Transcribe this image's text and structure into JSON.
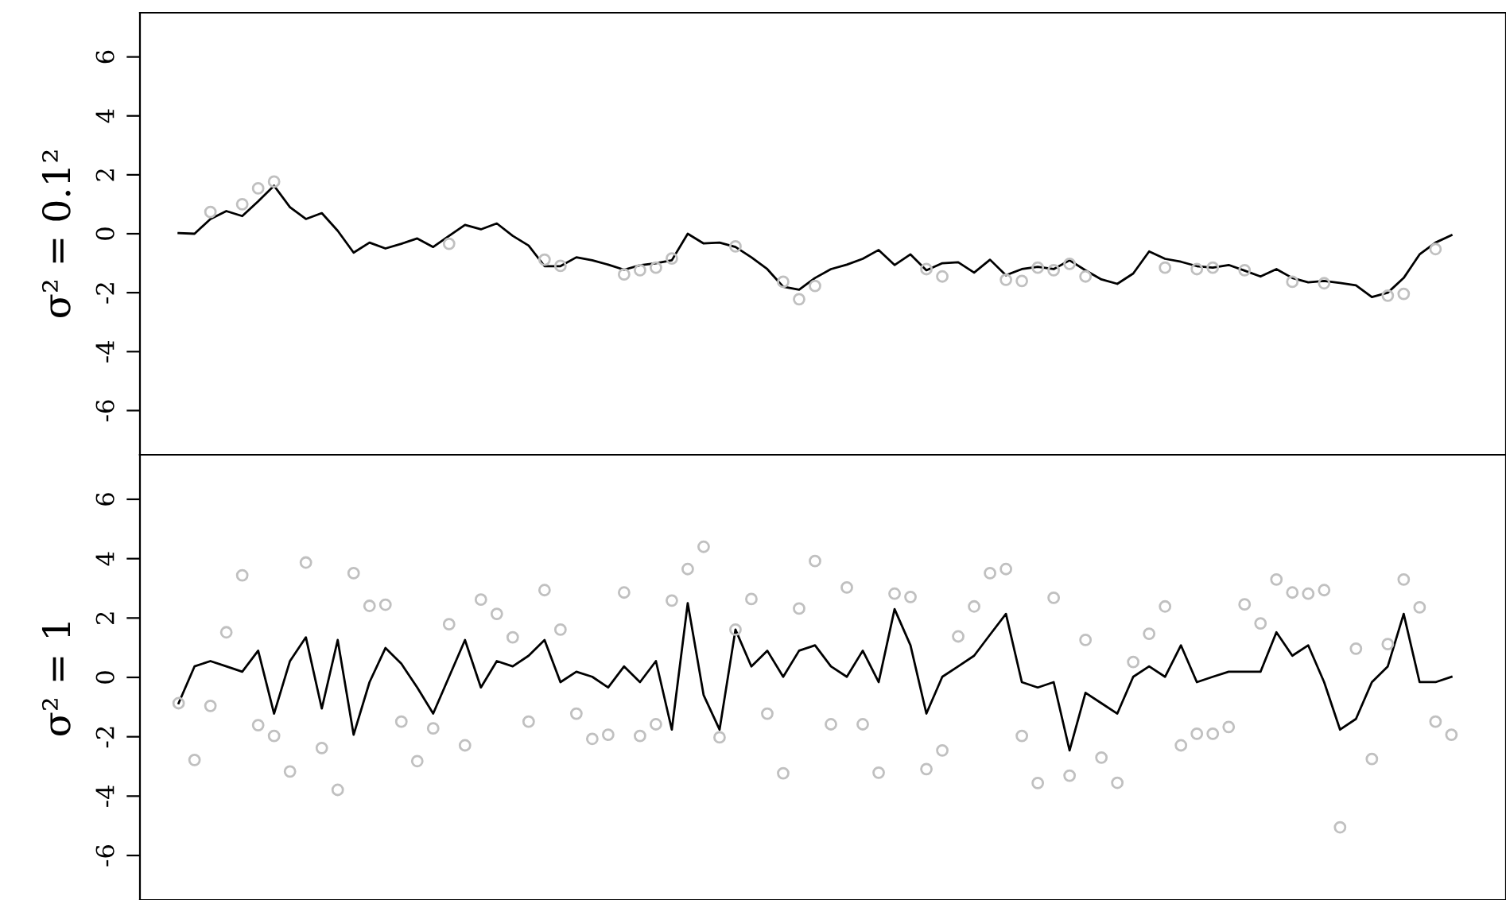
{
  "chart_data": [
    {
      "type": "line",
      "ylabel": "σ² = 0.1²",
      "categories": [
        null,
        null,
        null,
        null,
        null,
        null,
        null,
        null,
        null,
        null,
        null,
        null,
        null,
        null,
        null,
        null,
        null,
        null,
        null,
        null,
        null,
        null,
        null,
        null,
        null,
        null,
        null,
        null,
        null,
        null,
        null,
        null,
        null,
        null,
        null,
        null,
        null,
        null,
        null,
        null,
        null,
        null,
        null,
        null,
        null,
        null,
        null,
        null,
        null,
        null,
        null,
        null,
        null,
        null,
        null,
        null,
        null,
        null,
        null,
        null,
        null,
        null,
        null,
        null,
        null,
        null,
        null,
        null,
        null,
        null,
        null,
        null,
        null,
        null,
        null,
        null,
        null,
        null,
        null,
        null,
        null
      ],
      "ylim": [
        -7.5,
        7.5
      ],
      "yticks": [
        -6,
        -4,
        -2,
        0,
        2,
        4,
        6
      ],
      "tick_labels": "y",
      "grid": false,
      "series": [
        {
          "type": "scatter",
          "color": "#c0c0c0",
          "marker": "circle",
          "values": [
            null,
            null,
            0.74,
            null,
            1.0,
            1.54,
            1.77,
            null,
            null,
            null,
            null,
            null,
            null,
            null,
            null,
            null,
            null,
            -0.34,
            null,
            null,
            null,
            null,
            null,
            -0.88,
            -1.09,
            null,
            null,
            null,
            -1.38,
            -1.24,
            -1.15,
            -0.84,
            null,
            null,
            null,
            -0.43,
            null,
            null,
            -1.63,
            -2.22,
            -1.77,
            null,
            null,
            null,
            null,
            null,
            null,
            -1.2,
            -1.45,
            null,
            null,
            null,
            -1.56,
            -1.6,
            -1.15,
            -1.24,
            -1.02,
            -1.45,
            null,
            null,
            null,
            null,
            -1.15,
            null,
            -1.2,
            -1.15,
            null,
            -1.24,
            null,
            null,
            -1.63,
            null,
            -1.68,
            null,
            null,
            null,
            -2.1,
            -2.04,
            null,
            -0.52,
            null
          ]
        },
        {
          "color": "#000000",
          "line_style": "solid",
          "values": [
            0.02,
            0.0,
            0.5,
            0.77,
            0.6,
            1.1,
            1.63,
            0.9,
            0.5,
            0.7,
            0.1,
            -0.64,
            -0.3,
            -0.5,
            -0.34,
            -0.16,
            -0.45,
            -0.07,
            0.3,
            0.15,
            0.35,
            -0.07,
            -0.4,
            -1.1,
            -1.1,
            -0.8,
            -0.9,
            -1.05,
            -1.22,
            -1.07,
            -1.0,
            -0.9,
            0.0,
            -0.33,
            -0.3,
            -0.45,
            -0.8,
            -1.2,
            -1.8,
            -1.9,
            -1.5,
            -1.2,
            -1.05,
            -0.85,
            -0.55,
            -1.06,
            -0.7,
            -1.24,
            -1.0,
            -0.97,
            -1.32,
            -0.88,
            -1.41,
            -1.2,
            -1.12,
            -1.2,
            -0.9,
            -1.24,
            -1.55,
            -1.7,
            -1.35,
            -0.6,
            -0.85,
            -0.95,
            -1.1,
            -1.15,
            -1.06,
            -1.25,
            -1.45,
            -1.2,
            -1.5,
            -1.65,
            -1.6,
            -1.67,
            -1.75,
            -2.15,
            -2.0,
            -1.5,
            -0.7,
            -0.3,
            -0.05
          ]
        }
      ]
    },
    {
      "type": "line",
      "ylabel": "σ² = 1",
      "categories": [
        null,
        null,
        null,
        null,
        null,
        null,
        null,
        null,
        null,
        null,
        null,
        null,
        null,
        null,
        null,
        null,
        null,
        null,
        null,
        null,
        null,
        null,
        null,
        null,
        null,
        null,
        null,
        null,
        null,
        null,
        null,
        null,
        null,
        null,
        null,
        null,
        null,
        null,
        null,
        null,
        null,
        null,
        null,
        null,
        null,
        null,
        null,
        null,
        null,
        null,
        null,
        null,
        null,
        null,
        null,
        null,
        null,
        null,
        null,
        null,
        null,
        null,
        null,
        null,
        null,
        null,
        null,
        null,
        null,
        null,
        null,
        null,
        null,
        null,
        null,
        null,
        null,
        null,
        null,
        null,
        null
      ],
      "ylim": [
        -7.5,
        7.5
      ],
      "yticks": [
        -6,
        -4,
        -2,
        0,
        2,
        4,
        6
      ],
      "tick_labels": "y",
      "grid": false,
      "series": [
        {
          "type": "scatter",
          "color": "#c0c0c0",
          "marker": "circle",
          "values": [
            -0.87,
            -2.78,
            -0.96,
            1.52,
            3.44,
            -1.61,
            -1.97,
            -3.17,
            3.87,
            -2.38,
            -3.79,
            3.51,
            2.41,
            2.45,
            -1.49,
            -2.82,
            -1.72,
            1.79,
            -2.29,
            2.62,
            2.14,
            1.35,
            -1.49,
            2.94,
            1.61,
            -1.22,
            -2.07,
            -1.93,
            2.86,
            -1.97,
            -1.58,
            2.59,
            3.65,
            4.4,
            -2.02,
            1.61,
            2.64,
            -1.22,
            -3.23,
            2.32,
            3.92,
            -1.58,
            3.03,
            -1.58,
            -3.21,
            2.82,
            2.71,
            -3.09,
            -2.46,
            1.38,
            2.39,
            3.51,
            3.65,
            -1.97,
            -3.56,
            2.68,
            -3.31,
            1.26,
            -2.7,
            -3.55,
            0.52,
            1.47,
            2.39,
            -2.29,
            -1.9,
            -1.9,
            -1.67,
            2.46,
            1.82,
            3.3,
            2.86,
            2.82,
            2.94,
            -5.05,
            0.97,
            -2.75,
            1.12,
            3.3,
            2.36,
            -1.49,
            -1.93
          ]
        },
        {
          "color": "#000000",
          "line_style": "solid",
          "values": [
            -0.87,
            0.37,
            0.55,
            0.37,
            0.19,
            0.9,
            -1.22,
            0.55,
            1.35,
            -1.05,
            1.26,
            -1.93,
            -0.16,
            0.99,
            0.46,
            -0.34,
            -1.22,
            0.02,
            1.26,
            -0.34,
            0.55,
            0.37,
            0.73,
            1.26,
            -0.16,
            0.19,
            0.02,
            -0.34,
            0.37,
            -0.16,
            0.55,
            -1.76,
            2.5,
            -0.6,
            -1.76,
            1.61,
            0.37,
            0.9,
            0.02,
            0.9,
            1.08,
            0.37,
            0.02,
            0.9,
            -0.16,
            2.3,
            1.08,
            -1.22,
            0.02,
            0.37,
            0.73,
            1.44,
            2.14,
            -0.16,
            -0.34,
            -0.16,
            -2.46,
            -0.52,
            -0.87,
            -1.22,
            0.02,
            0.37,
            0.02,
            1.08,
            -0.16,
            0.02,
            0.19,
            0.19,
            0.19,
            1.52,
            0.73,
            1.08,
            -0.16,
            -1.76,
            -1.4,
            -0.16,
            0.37,
            2.14,
            -0.16,
            -0.16,
            0.02
          ]
        }
      ]
    }
  ]
}
